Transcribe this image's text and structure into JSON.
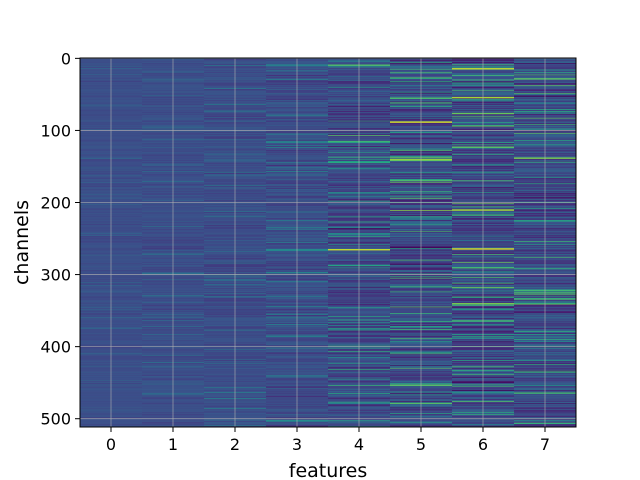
{
  "chart_data": {
    "type": "heatmap",
    "title": "",
    "xlabel": "features",
    "ylabel": "channels",
    "x_ticks": [
      "0",
      "1",
      "2",
      "3",
      "4",
      "5",
      "6",
      "7"
    ],
    "y_ticks": [
      "0",
      "100",
      "200",
      "300",
      "400",
      "500"
    ],
    "y_tick_values": [
      0,
      100,
      200,
      300,
      400,
      500
    ],
    "n_columns": 8,
    "n_rows": 512,
    "xlim": [
      -0.5,
      7.5
    ],
    "ylim": [
      511.5,
      -0.5
    ],
    "y_inverted": true,
    "grid": true,
    "colormap": "viridis",
    "column_spread": [
      0.05,
      0.07,
      0.1,
      0.14,
      0.21,
      0.27,
      0.27,
      0.25
    ],
    "column_base": [
      0.24,
      0.24,
      0.24,
      0.24,
      0.23,
      0.23,
      0.23,
      0.23
    ],
    "highlight_rows": [
      {
        "feature": 4,
        "channel": 9,
        "value": 0.72
      },
      {
        "feature": 4,
        "channel": 115,
        "value": 0.68
      },
      {
        "feature": 4,
        "channel": 265,
        "value": 0.92
      },
      {
        "feature": 4,
        "channel": 236,
        "value": 0.05
      },
      {
        "feature": 5,
        "channel": 88,
        "value": 0.95
      },
      {
        "feature": 5,
        "channel": 140,
        "value": 0.85
      },
      {
        "feature": 5,
        "channel": 262,
        "value": 0.02
      },
      {
        "feature": 5,
        "channel": 453,
        "value": 0.75
      },
      {
        "feature": 6,
        "channel": 14,
        "value": 0.92
      },
      {
        "feature": 6,
        "channel": 54,
        "value": 0.88
      },
      {
        "feature": 6,
        "channel": 210,
        "value": 0.88
      },
      {
        "feature": 6,
        "channel": 264,
        "value": 0.95
      },
      {
        "feature": 6,
        "channel": 340,
        "value": 0.8
      },
      {
        "feature": 7,
        "channel": 28,
        "value": 0.75
      },
      {
        "feature": 7,
        "channel": 52,
        "value": 0.05
      },
      {
        "feature": 7,
        "channel": 138,
        "value": 0.8
      },
      {
        "feature": 7,
        "channel": 325,
        "value": 0.7
      }
    ]
  }
}
